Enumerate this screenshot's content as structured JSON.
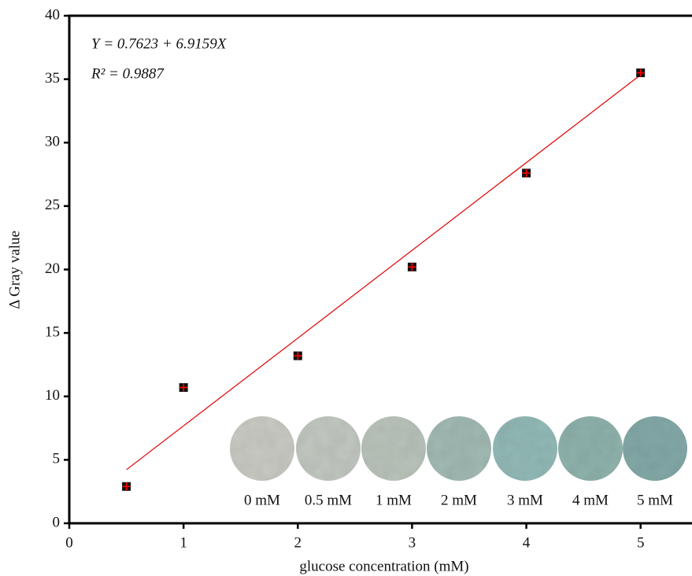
{
  "chart_data": {
    "type": "scatter",
    "x_label": "glucose concentration (mM)",
    "y_label": "Δ Gray value",
    "equation": "Y = 0.7623 + 6.9159X",
    "r_squared": "R² = 0.9887",
    "x": [
      0.5,
      1,
      2,
      3,
      4,
      5
    ],
    "values": [
      2.9,
      10.7,
      13.2,
      20.2,
      27.6,
      35.5
    ],
    "marker_color": "#111111",
    "cross_color": "#ff0000",
    "fit_line": {
      "x": [
        0.5,
        5
      ],
      "values": [
        4.22,
        35.34
      ],
      "color": "#e00000"
    },
    "xlim": [
      0,
      5.45
    ],
    "ylim": [
      0,
      40
    ],
    "xticks": [
      0,
      1,
      2,
      3,
      4,
      5
    ],
    "yticks": [
      0,
      5,
      10,
      15,
      20,
      25,
      30,
      35,
      40
    ],
    "inset_labels": [
      "0 mM",
      "0.5 mM",
      "1 mM",
      "2 mM",
      "3 mM",
      "4 mM",
      "5 mM"
    ]
  }
}
